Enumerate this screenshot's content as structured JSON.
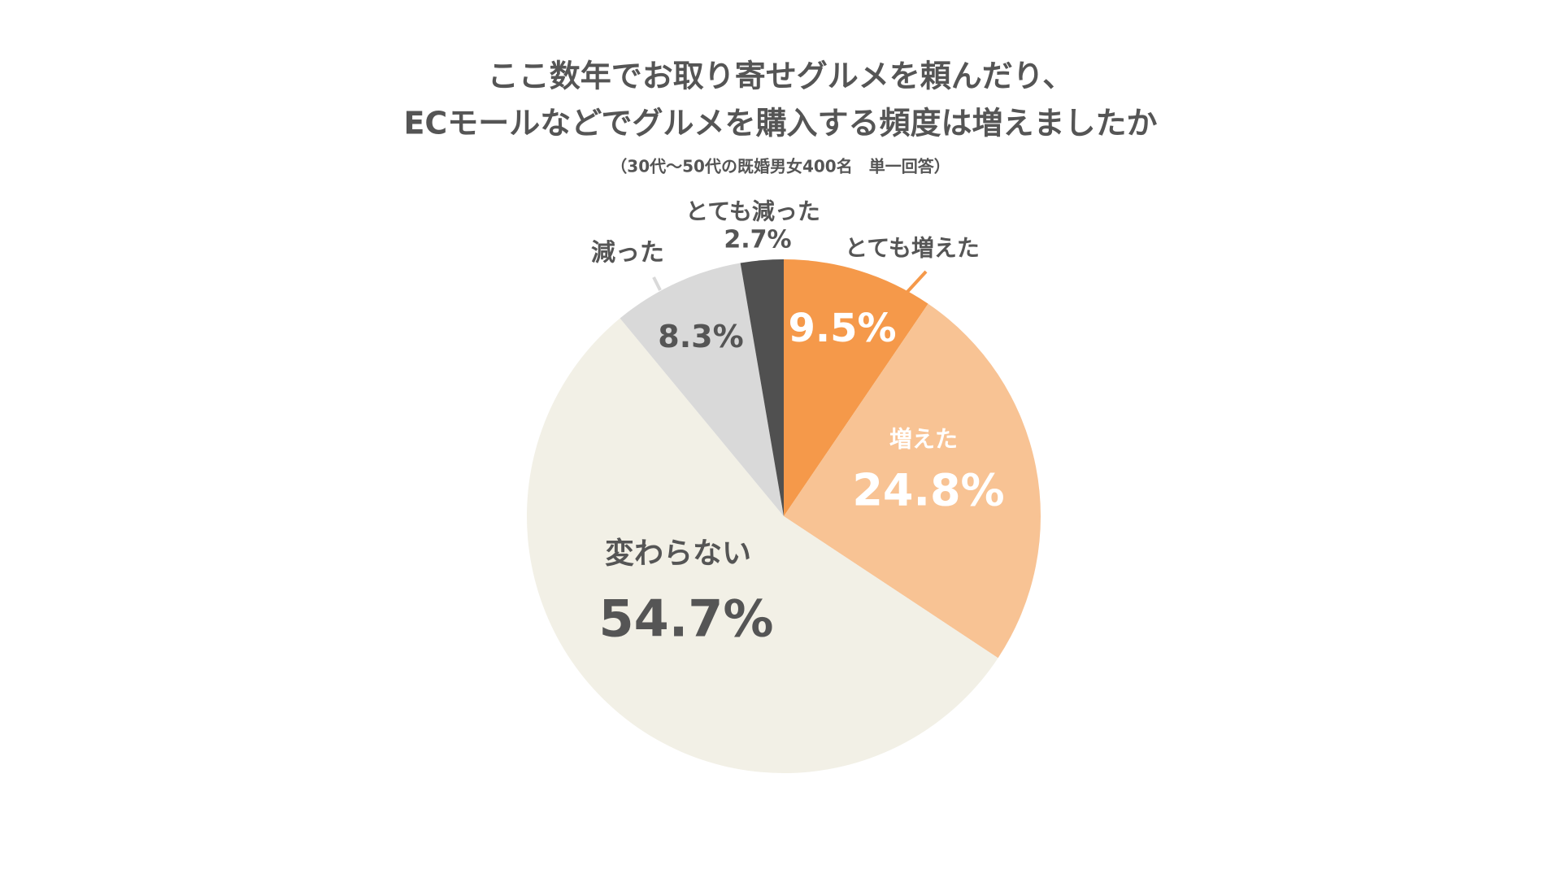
{
  "chart_data": {
    "type": "pie",
    "title": "ここ数年でお取り寄せグルメを頼んだり、",
    "title_line2": "ECモールなどでグルメを購入する頻度は増えましたか",
    "subtitle": "（30代～50代の既婚男女400名　単一回答）",
    "start": "12 o'clock, clockwise",
    "slices": [
      {
        "label": "とても増えた",
        "value": 9.5,
        "value_label": "9.5%",
        "color": "#F5994A"
      },
      {
        "label": "増えた",
        "value": 24.8,
        "value_label": "24.8%",
        "color": "#F8C394"
      },
      {
        "label": "変わらない",
        "value": 54.7,
        "value_label": "54.7%",
        "color": "#F2F0E6"
      },
      {
        "label": "減った",
        "value": 8.3,
        "value_label": "8.3%",
        "color": "#D9D9D9"
      },
      {
        "label": "とても減った",
        "value": 2.7,
        "value_label": "2.7%",
        "color": "#505050"
      }
    ]
  }
}
